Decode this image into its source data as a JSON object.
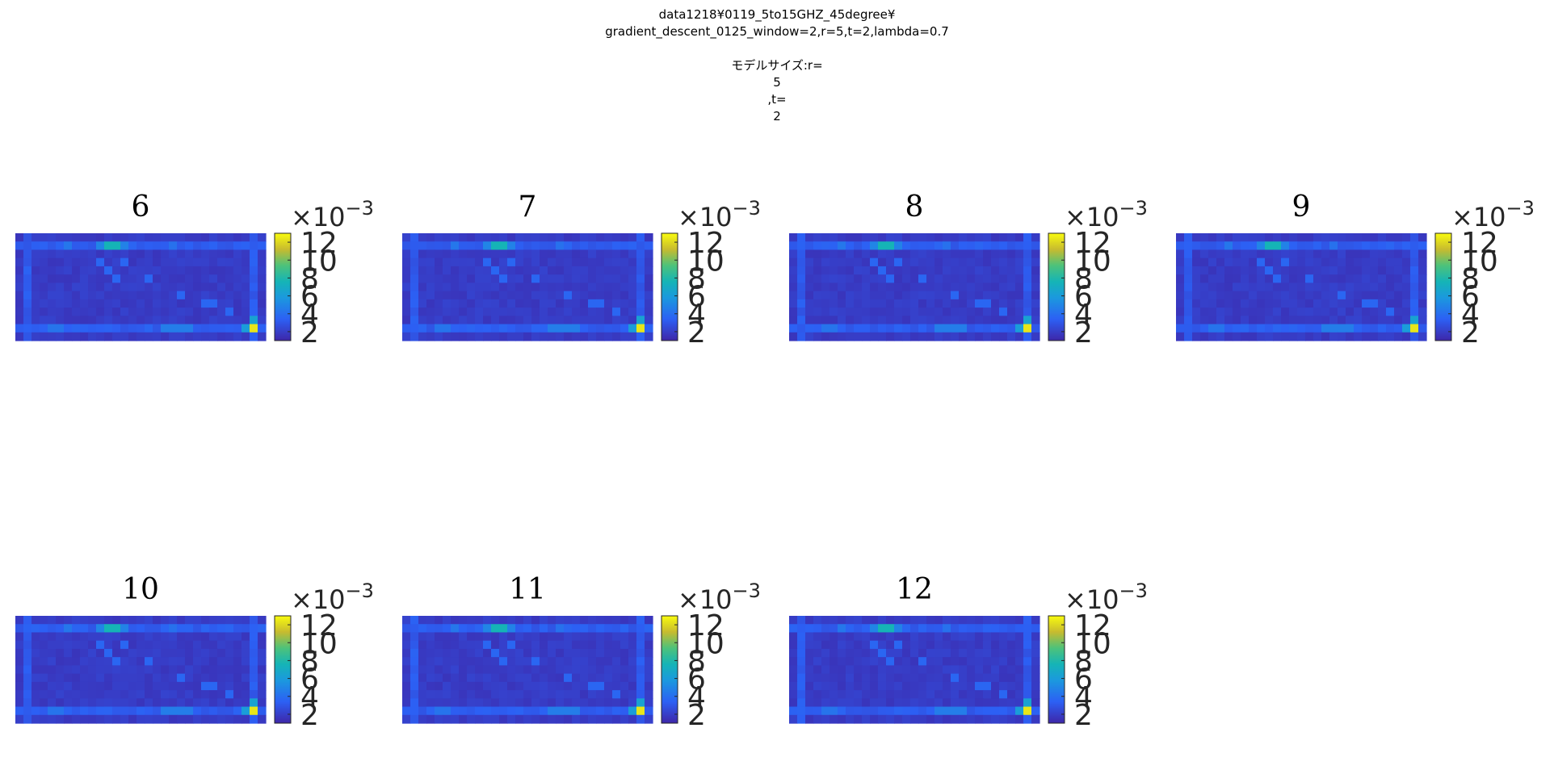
{
  "figure": {
    "suptitle_lines": [
      "data1218¥0119_5to15GHZ_45degree¥",
      "gradient_descent_0125_window=2,r=5,t=2,lambda=0.7",
      "",
      "モデルサイズ:r=",
      "5",
      ",t=",
      "2"
    ]
  },
  "chart_data": [
    {
      "type": "heatmap",
      "title": "6",
      "colorbar": {
        "ticks": [
          2,
          4,
          6,
          8,
          10,
          12
        ],
        "multiplier": "×10",
        "exponent": "−3",
        "range": [
          1,
          13
        ],
        "colormap": "parula"
      }
    },
    {
      "type": "heatmap",
      "title": "7",
      "colorbar": {
        "ticks": [
          2,
          4,
          6,
          8,
          10,
          12
        ],
        "multiplier": "×10",
        "exponent": "−3",
        "range": [
          1,
          13
        ],
        "colormap": "parula"
      }
    },
    {
      "type": "heatmap",
      "title": "8",
      "colorbar": {
        "ticks": [
          2,
          4,
          6,
          8,
          10,
          12
        ],
        "multiplier": "×10",
        "exponent": "−3",
        "range": [
          1,
          13
        ],
        "colormap": "parula"
      }
    },
    {
      "type": "heatmap",
      "title": "9",
      "colorbar": {
        "ticks": [
          2,
          4,
          6,
          8,
          10,
          12
        ],
        "multiplier": "×10",
        "exponent": "−3",
        "range": [
          1,
          13
        ],
        "colormap": "parula"
      }
    },
    {
      "type": "heatmap",
      "title": "10",
      "colorbar": {
        "ticks": [
          2,
          4,
          6,
          8,
          10,
          12
        ],
        "multiplier": "×10",
        "exponent": "−3",
        "range": [
          1,
          13
        ],
        "colormap": "parula"
      }
    },
    {
      "type": "heatmap",
      "title": "11",
      "colorbar": {
        "ticks": [
          2,
          4,
          6,
          8,
          10,
          12
        ],
        "multiplier": "×10",
        "exponent": "−3",
        "range": [
          1,
          13
        ],
        "colormap": "parula"
      }
    },
    {
      "type": "heatmap",
      "title": "12",
      "colorbar": {
        "ticks": [
          2,
          4,
          6,
          8,
          10,
          12
        ],
        "multiplier": "×10",
        "exponent": "−3",
        "range": [
          1,
          13
        ],
        "colormap": "parula"
      }
    }
  ]
}
